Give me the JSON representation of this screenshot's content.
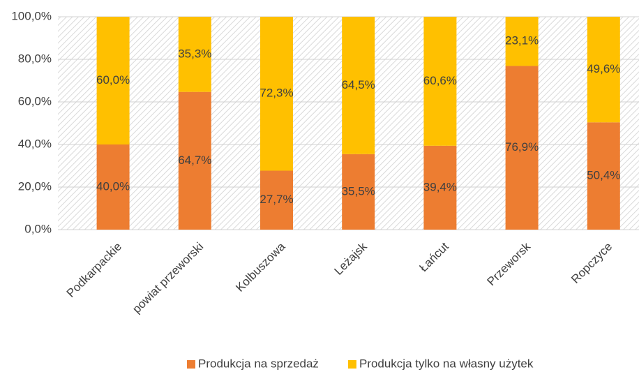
{
  "chart_data": {
    "type": "stacked_bar",
    "categories": [
      "Podkarpackie",
      "powiat przeworski",
      "Kolbuszowa",
      "Leżajsk",
      "Łańcut",
      "Przeworsk",
      "Ropczyce"
    ],
    "series": [
      {
        "name": "Produkcja na sprzedaż",
        "color": "#ed7d31",
        "values": [
          40.0,
          64.7,
          27.7,
          35.5,
          39.4,
          76.9,
          50.4
        ],
        "value_labels": [
          "40,0%",
          "64,7%",
          "27,7%",
          "35,5%",
          "39,4%",
          "76,9%",
          "50,4%"
        ]
      },
      {
        "name": "Produkcja tylko na własny użytek",
        "color": "#ffc000",
        "values": [
          60.0,
          35.3,
          72.3,
          64.5,
          60.6,
          23.1,
          49.6
        ],
        "value_labels": [
          "60,0%",
          "35,3%",
          "72,3%",
          "64,5%",
          "60,6%",
          "23,1%",
          "49,6%"
        ]
      }
    ],
    "ylim": [
      0,
      100
    ],
    "yticks": [
      {
        "value": 0,
        "label": "0,0%"
      },
      {
        "value": 20,
        "label": "20,0%"
      },
      {
        "value": 40,
        "label": "40,0%"
      },
      {
        "value": 60,
        "label": "60,0%"
      },
      {
        "value": 80,
        "label": "80,0%"
      },
      {
        "value": 100,
        "label": "100,0%"
      }
    ],
    "grid": true,
    "legend": "bottom"
  }
}
